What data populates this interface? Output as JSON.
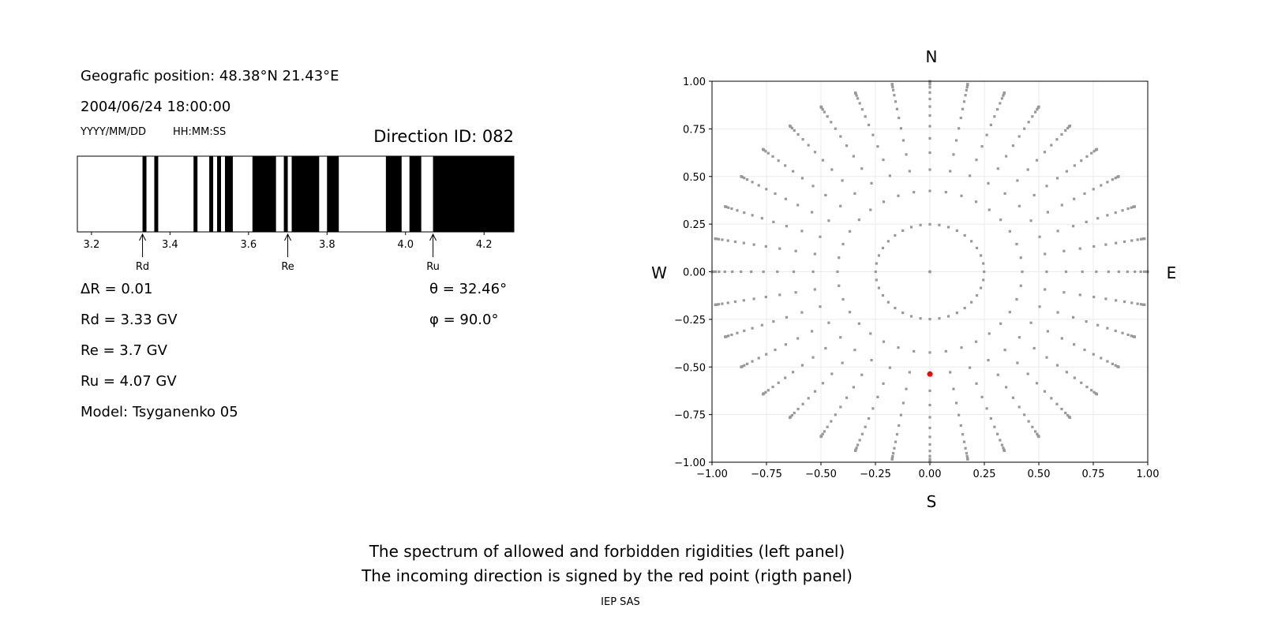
{
  "left_panel": {
    "position_line": "Geografic position: 48.38°N 21.43°E",
    "datetime": "2004/06/24 18:00:00",
    "date_format_label": "YYYY/MM/DD",
    "time_format_label": "HH:MM:SS",
    "direction_id": "Direction ID: 082",
    "delta_r": "ΔR = 0.01",
    "rd": "Rd = 3.33 GV",
    "re": "Re = 3.7 GV",
    "ru": "Ru = 4.07 GV",
    "model": "Model: Tsyganenko 05",
    "theta": "θ = 32.46°",
    "phi": "φ = 90.0°"
  },
  "chart_data": [
    {
      "type": "bar",
      "description_role": "rigidity spectrum, black = forbidden, white = allowed",
      "xlim": [
        3.164,
        4.276
      ],
      "xticks": [
        "3.2",
        "3.4",
        "3.6",
        "3.8",
        "4.0",
        "4.2"
      ],
      "forbidden_bands": [
        [
          3.33,
          3.34
        ],
        [
          3.36,
          3.37
        ],
        [
          3.46,
          3.47
        ],
        [
          3.5,
          3.51
        ],
        [
          3.52,
          3.53
        ],
        [
          3.54,
          3.56
        ],
        [
          3.61,
          3.67
        ],
        [
          3.69,
          3.7
        ],
        [
          3.71,
          3.78
        ],
        [
          3.8,
          3.83
        ],
        [
          3.95,
          3.99
        ],
        [
          4.01,
          4.04
        ],
        [
          4.07,
          4.276
        ]
      ],
      "markers": [
        {
          "label": "Rd",
          "x": 3.33
        },
        {
          "label": "Re",
          "x": 3.7
        },
        {
          "label": "Ru",
          "x": 4.07
        }
      ],
      "colors": {
        "forbidden": "#000000",
        "allowed": "#ffffff"
      }
    },
    {
      "type": "scatter",
      "xlim": [
        -1,
        1
      ],
      "ylim": [
        -1,
        1
      ],
      "xticks": [
        "−1.00",
        "−0.75",
        "−0.50",
        "−0.25",
        "0.00",
        "0.25",
        "0.50",
        "0.75",
        "1.00"
      ],
      "yticks": [
        "−1.00",
        "−0.75",
        "−0.50",
        "−0.25",
        "0.00",
        "0.25",
        "0.50",
        "0.75",
        "1.00"
      ],
      "grid": true,
      "directions": {
        "top": "N",
        "bottom": "S",
        "left": "W",
        "right": "E"
      },
      "grid_points": {
        "azimuth_step_deg": 10,
        "radii": [
          0.249,
          0.424,
          0.536,
          0.625,
          0.7,
          0.764,
          0.82,
          0.867,
          0.907,
          0.941,
          0.968,
          0.984,
          0.994,
          0.998,
          0.999,
          1.0
        ],
        "center": [
          0,
          0
        ],
        "color": "#999999"
      },
      "highlight_point": {
        "x": 0.0,
        "y": -0.537,
        "color": "#ff0000"
      }
    }
  ],
  "caption": {
    "line1": "The spectrum of allowed and forbidden rigidities (left panel)",
    "line2": "The incoming direction is signed by the red point (rigth panel)",
    "credit": "IEP SAS"
  }
}
